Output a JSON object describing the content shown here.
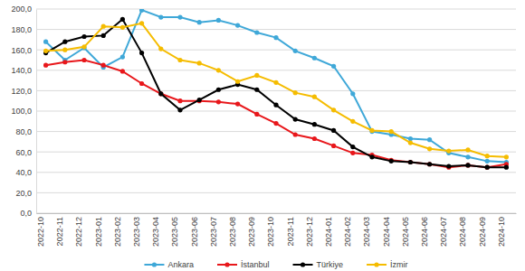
{
  "chart_data": {
    "type": "line",
    "categories": [
      "2022-10",
      "2022-11",
      "2022-12",
      "2023-01",
      "2023-02",
      "2023-03",
      "2023-04",
      "2023-05",
      "2023-06",
      "2023-07",
      "2023-08",
      "2023-09",
      "2023-10",
      "2023-11",
      "2023-12",
      "2024-01",
      "2024-02",
      "2024-03",
      "2024-04",
      "2024-05",
      "2024-06",
      "2024-07",
      "2024-08",
      "2024-09",
      "2024-10"
    ],
    "series": [
      {
        "name": "Ankara",
        "color": "#3fa8d8",
        "values": [
          168,
          150,
          162,
          143,
          153,
          199,
          192,
          192,
          187,
          189,
          184,
          177,
          172,
          159,
          152,
          144,
          117,
          80,
          77,
          73,
          72,
          59,
          55,
          51,
          50
        ]
      },
      {
        "name": "İstanbul",
        "color": "#e8171b",
        "values": [
          145,
          148,
          150,
          145,
          139,
          127,
          117,
          110,
          110,
          109,
          107,
          97,
          88,
          77,
          73,
          66,
          59,
          57,
          52,
          50,
          48,
          45,
          47,
          45,
          48
        ]
      },
      {
        "name": "Türkiye",
        "color": "#000000",
        "values": [
          157,
          168,
          173,
          174,
          190,
          157,
          117,
          101,
          111,
          121,
          126,
          121,
          106,
          92,
          87,
          81,
          65,
          55,
          51,
          50,
          48,
          46,
          47,
          45,
          45
        ]
      },
      {
        "name": "İzmir",
        "color": "#f5bc00",
        "values": [
          159,
          160,
          163,
          183,
          182,
          186,
          161,
          150,
          147,
          140,
          129,
          135,
          128,
          118,
          114,
          101,
          90,
          81,
          80,
          69,
          63,
          61,
          62,
          56,
          55
        ]
      }
    ],
    "ylim": [
      0,
      200
    ],
    "yticks": [
      {
        "value": 0,
        "label": "0,0"
      },
      {
        "value": 20,
        "label": "20,0"
      },
      {
        "value": 40,
        "label": "40,0"
      },
      {
        "value": 60,
        "label": "60,0"
      },
      {
        "value": 80,
        "label": "80,0"
      },
      {
        "value": 100,
        "label": "100,0"
      },
      {
        "value": 120,
        "label": "120,0"
      },
      {
        "value": 140,
        "label": "140,0"
      },
      {
        "value": 160,
        "label": "160,0"
      },
      {
        "value": 180,
        "label": "180,0"
      },
      {
        "value": 200,
        "label": "200,0"
      }
    ],
    "grid": true,
    "legend": "bottom",
    "marker": "circle",
    "line_style": "solid"
  }
}
